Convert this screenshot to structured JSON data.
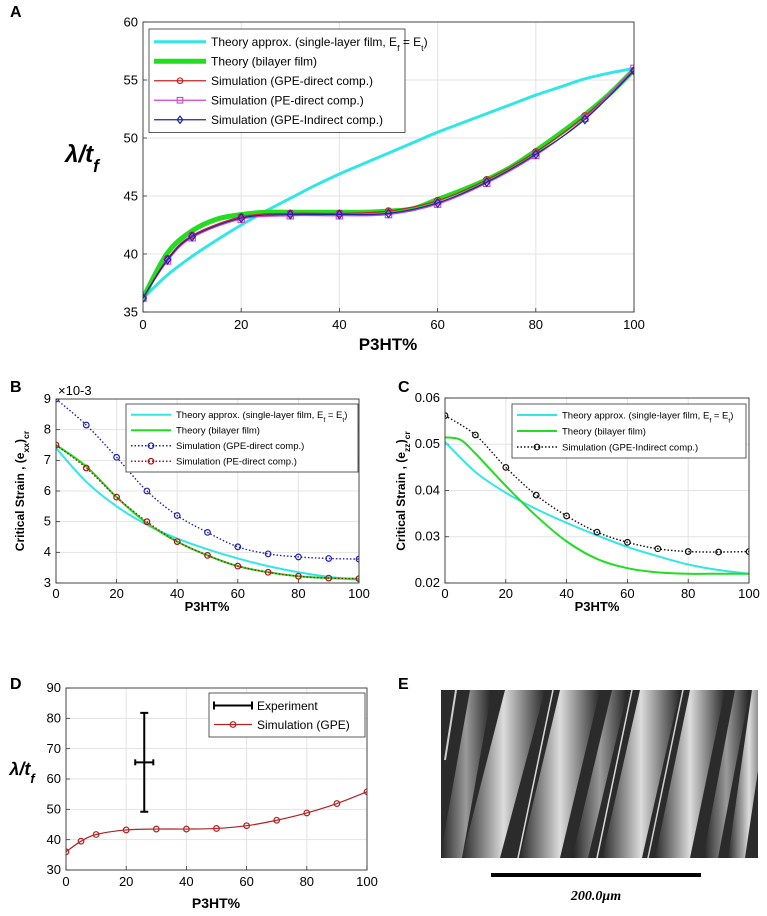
{
  "panels": {
    "A": {
      "letter": "A"
    },
    "B": {
      "letter": "B"
    },
    "C": {
      "letter": "C"
    },
    "D": {
      "letter": "D"
    },
    "E": {
      "letter": "E"
    }
  },
  "chart_data": [
    {
      "id": "A",
      "type": "line",
      "xlabel": "P3HT%",
      "ylabel": "λ/t_f",
      "xlim": [
        0,
        100
      ],
      "ylim": [
        35,
        60
      ],
      "xticks": [
        0,
        20,
        40,
        60,
        80,
        100
      ],
      "yticks": [
        35,
        40,
        45,
        50,
        55,
        60
      ],
      "grid": true,
      "legend_position": "top-left",
      "series": [
        {
          "name": "Theory approx. (single-layer film, E_f = E_t)",
          "color": "#33e6e6",
          "style": "solid",
          "marker": "none",
          "x": [
            0,
            5,
            10,
            15,
            20,
            25,
            30,
            35,
            40,
            45,
            50,
            55,
            60,
            65,
            70,
            75,
            80,
            85,
            90,
            95,
            100
          ],
          "y": [
            36.2,
            38.2,
            39.8,
            41.2,
            42.5,
            43.7,
            44.8,
            45.9,
            46.9,
            47.8,
            48.7,
            49.6,
            50.5,
            51.3,
            52.1,
            52.9,
            53.7,
            54.4,
            55.1,
            55.6,
            56.0
          ]
        },
        {
          "name": "Theory (bilayer film)",
          "color": "#22dd22",
          "style": "solid",
          "marker": "none",
          "x": [
            0,
            5,
            10,
            15,
            20,
            25,
            30,
            35,
            40,
            45,
            50,
            55,
            60,
            65,
            70,
            75,
            80,
            85,
            90,
            95,
            100
          ],
          "y": [
            36.2,
            40.1,
            42.0,
            43.0,
            43.4,
            43.6,
            43.6,
            43.6,
            43.6,
            43.6,
            43.7,
            43.9,
            44.7,
            45.5,
            46.4,
            47.5,
            48.9,
            50.4,
            52.0,
            53.8,
            55.9
          ]
        },
        {
          "name": "Simulation (GPE-direct comp.)",
          "color": "#cc2222",
          "style": "solid",
          "marker": "circle",
          "x": [
            0,
            5,
            10,
            20,
            30,
            40,
            50,
            60,
            70,
            80,
            90,
            100
          ],
          "y": [
            36.2,
            39.6,
            41.6,
            43.2,
            43.5,
            43.5,
            43.7,
            44.6,
            46.4,
            48.8,
            51.9,
            55.8
          ]
        },
        {
          "name": "Simulation (PE-direct comp.)",
          "color": "#cc44cc",
          "style": "solid",
          "marker": "square",
          "x": [
            0,
            5,
            10,
            20,
            30,
            40,
            50,
            60,
            70,
            80,
            90,
            100
          ],
          "y": [
            36.2,
            39.4,
            41.4,
            43.0,
            43.3,
            43.3,
            43.4,
            44.3,
            46.1,
            48.5,
            51.7,
            56.0
          ]
        },
        {
          "name": "Simulation (GPE-Indirect comp.)",
          "color": "#2222aa",
          "style": "solid",
          "marker": "diamond",
          "x": [
            0,
            5,
            10,
            20,
            30,
            40,
            50,
            60,
            70,
            80,
            90,
            100
          ],
          "y": [
            36.2,
            39.5,
            41.5,
            43.1,
            43.4,
            43.4,
            43.5,
            44.4,
            46.2,
            48.6,
            51.6,
            55.8
          ]
        }
      ]
    },
    {
      "id": "B",
      "type": "line",
      "xlabel": "P3HT%",
      "ylabel": "Critical Strain , (e_xx)_cr",
      "multiplier": "×10-3",
      "xlim": [
        0,
        100
      ],
      "ylim": [
        3,
        9
      ],
      "xticks": [
        0,
        20,
        40,
        60,
        80,
        100
      ],
      "yticks": [
        3,
        4,
        5,
        6,
        7,
        8,
        9
      ],
      "grid": true,
      "legend_position": "top-right",
      "series": [
        {
          "name": "Theory approx. (single-layer film, E_f = E_t)",
          "color": "#33e6e6",
          "style": "solid",
          "marker": "none",
          "x": [
            0,
            10,
            20,
            30,
            40,
            50,
            60,
            70,
            80,
            90,
            100
          ],
          "y": [
            7.4,
            6.3,
            5.5,
            4.9,
            4.45,
            4.1,
            3.8,
            3.55,
            3.35,
            3.2,
            3.1
          ]
        },
        {
          "name": "Theory (bilayer film)",
          "color": "#22dd22",
          "style": "solid",
          "marker": "none",
          "x": [
            0,
            10,
            20,
            30,
            40,
            50,
            60,
            70,
            80,
            90,
            100
          ],
          "y": [
            7.5,
            6.8,
            5.8,
            4.95,
            4.35,
            3.9,
            3.55,
            3.35,
            3.22,
            3.16,
            3.14
          ]
        },
        {
          "name": "Simulation (GPE-direct comp.)",
          "color": "#2222aa",
          "style": "dotted",
          "marker": "circle",
          "x": [
            0,
            10,
            20,
            30,
            40,
            50,
            60,
            70,
            80,
            90,
            100
          ],
          "y": [
            9.0,
            8.15,
            7.1,
            6.0,
            5.2,
            4.65,
            4.18,
            3.95,
            3.85,
            3.8,
            3.78
          ]
        },
        {
          "name": "Simulation (PE-direct comp.)",
          "color": "#aa1111",
          "style": "dotted",
          "marker": "circle",
          "x": [
            0,
            10,
            20,
            30,
            40,
            50,
            60,
            70,
            80,
            90,
            100
          ],
          "y": [
            7.5,
            6.75,
            5.8,
            5.0,
            4.35,
            3.9,
            3.55,
            3.35,
            3.22,
            3.16,
            3.14
          ]
        }
      ]
    },
    {
      "id": "C",
      "type": "line",
      "xlabel": "P3HT%",
      "ylabel": "Critical Strain , (e_zz)_cr",
      "xlim": [
        0,
        100
      ],
      "ylim": [
        0.02,
        0.06
      ],
      "xticks": [
        0,
        20,
        40,
        60,
        80,
        100
      ],
      "yticks": [
        "0.02",
        "0.03",
        "0.04",
        "0.05",
        "0.06"
      ],
      "grid": true,
      "legend_position": "top-right",
      "series": [
        {
          "name": "Theory approx. (single-layer film, E_f = E_t)",
          "color": "#33e6e6",
          "style": "solid",
          "marker": "none",
          "x": [
            0,
            10,
            20,
            30,
            40,
            50,
            60,
            70,
            80,
            90,
            100
          ],
          "y": [
            0.0505,
            0.044,
            0.0395,
            0.036,
            0.033,
            0.0303,
            0.0278,
            0.0258,
            0.024,
            0.0228,
            0.022
          ]
        },
        {
          "name": "Theory (bilayer film)",
          "color": "#22dd22",
          "style": "solid",
          "marker": "none",
          "x": [
            0,
            5,
            10,
            20,
            30,
            40,
            50,
            60,
            70,
            80,
            90,
            100
          ],
          "y": [
            0.0515,
            0.051,
            0.048,
            0.041,
            0.0345,
            0.029,
            0.0252,
            0.0232,
            0.0223,
            0.022,
            0.022,
            0.022
          ]
        },
        {
          "name": "Simulation (GPE-Indirect comp.)",
          "color": "#111111",
          "style": "dotted",
          "marker": "circle",
          "x": [
            0,
            10,
            20,
            30,
            40,
            50,
            60,
            70,
            80,
            90,
            100
          ],
          "y": [
            0.0562,
            0.052,
            0.045,
            0.039,
            0.0345,
            0.031,
            0.0288,
            0.0274,
            0.0268,
            0.0267,
            0.0268
          ]
        }
      ]
    },
    {
      "id": "D",
      "type": "line",
      "xlabel": "P3HT%",
      "ylabel": "λ/t_f",
      "xlim": [
        0,
        100
      ],
      "ylim": [
        30,
        90
      ],
      "xticks": [
        0,
        20,
        40,
        60,
        80,
        100
      ],
      "yticks": [
        30,
        40,
        50,
        60,
        70,
        80,
        90
      ],
      "grid": true,
      "legend_position": "top-right",
      "series": [
        {
          "name": "Experiment",
          "color": "#000000",
          "style": "errorbar",
          "marker": "none",
          "x": [
            26
          ],
          "y": [
            65.5
          ],
          "y_err": [
            16.3
          ],
          "x_err": [
            3
          ]
        },
        {
          "name": "Simulation (GPE)",
          "color": "#b22222",
          "style": "solid",
          "marker": "circle",
          "x": [
            0,
            5,
            10,
            20,
            30,
            40,
            50,
            60,
            70,
            80,
            90,
            100
          ],
          "y": [
            36,
            39.5,
            41.7,
            43.2,
            43.5,
            43.5,
            43.7,
            44.6,
            46.4,
            48.8,
            51.9,
            55.8
          ]
        }
      ]
    }
  ],
  "imageE": {
    "scale_label": "200.0μm"
  }
}
